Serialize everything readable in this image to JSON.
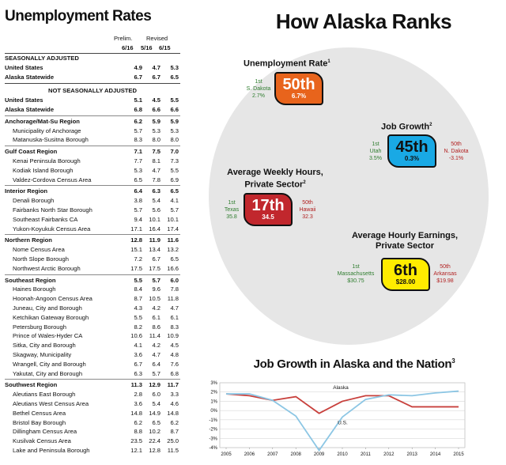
{
  "unemployment_table": {
    "title": "Unemployment Rates",
    "col_group_prelim": "Prelim.",
    "col_group_revised": "Revised",
    "columns": [
      "6/16",
      "5/16",
      "6/15"
    ],
    "rows": [
      {
        "label": "SEASONALLY ADJUSTED",
        "values": [
          "",
          "",
          ""
        ],
        "style": "section"
      },
      {
        "label": "United States",
        "values": [
          "4.9",
          "4.7",
          "5.3"
        ],
        "style": "bold"
      },
      {
        "label": "Alaska Statewide",
        "values": [
          "6.7",
          "6.7",
          "6.5"
        ],
        "style": "bold"
      },
      {
        "label": "NOT SEASONALLY ADJUSTED",
        "values": [
          "",
          "",
          ""
        ],
        "style": "section-center"
      },
      {
        "label": "United States",
        "values": [
          "5.1",
          "4.5",
          "5.5"
        ],
        "style": "bold"
      },
      {
        "label": "Alaska Statewide",
        "values": [
          "6.8",
          "6.6",
          "6.6"
        ],
        "style": "bold"
      },
      {
        "label": "Anchorage/Mat-Su Region",
        "values": [
          "6.2",
          "5.9",
          "5.9"
        ],
        "style": "region"
      },
      {
        "label": "Municipality of Anchorage",
        "values": [
          "5.7",
          "5.3",
          "5.3"
        ],
        "style": "indent"
      },
      {
        "label": "Matanuska-Susitna Borough",
        "values": [
          "8.3",
          "8.0",
          "8.0"
        ],
        "style": "indent"
      },
      {
        "label": "Gulf Coast Region",
        "values": [
          "7.1",
          "7.5",
          "7.0"
        ],
        "style": "region"
      },
      {
        "label": "Kenai Peninsula Borough",
        "values": [
          "7.7",
          "8.1",
          "7.3"
        ],
        "style": "indent"
      },
      {
        "label": "Kodiak Island Borough",
        "values": [
          "5.3",
          "4.7",
          "5.5"
        ],
        "style": "indent"
      },
      {
        "label": "Valdez-Cordova Census Area",
        "values": [
          "6.5",
          "7.8",
          "6.9"
        ],
        "style": "indent"
      },
      {
        "label": "Interior Region",
        "values": [
          "6.4",
          "6.3",
          "6.5"
        ],
        "style": "region"
      },
      {
        "label": "Denali Borough",
        "values": [
          "3.8",
          "5.4",
          "4.1"
        ],
        "style": "indent"
      },
      {
        "label": "Fairbanks North Star Borough",
        "values": [
          "5.7",
          "5.6",
          "5.7"
        ],
        "style": "indent"
      },
      {
        "label": "Southeast Fairbanks CA",
        "values": [
          "9.4",
          "10.1",
          "10.1"
        ],
        "style": "indent"
      },
      {
        "label": "Yukon-Koyukuk Census Area",
        "values": [
          "17.1",
          "16.4",
          "17.4"
        ],
        "style": "indent"
      },
      {
        "label": "Northern Region",
        "values": [
          "12.8",
          "11.9",
          "11.6"
        ],
        "style": "region"
      },
      {
        "label": "Nome Census Area",
        "values": [
          "15.1",
          "13.4",
          "13.2"
        ],
        "style": "indent"
      },
      {
        "label": "North Slope Borough",
        "values": [
          "7.2",
          "6.7",
          "6.5"
        ],
        "style": "indent"
      },
      {
        "label": "Northwest Arctic Borough",
        "values": [
          "17.5",
          "17.5",
          "16.6"
        ],
        "style": "indent"
      },
      {
        "label": "Southeast Region",
        "values": [
          "5.5",
          "5.7",
          "6.0"
        ],
        "style": "region"
      },
      {
        "label": "Haines Borough",
        "values": [
          "8.4",
          "9.6",
          "7.8"
        ],
        "style": "indent"
      },
      {
        "label": "Hoonah-Angoon Census Area",
        "values": [
          "8.7",
          "10.5",
          "11.8"
        ],
        "style": "indent"
      },
      {
        "label": "Juneau, City and Borough",
        "values": [
          "4.3",
          "4.2",
          "4.7"
        ],
        "style": "indent"
      },
      {
        "label": "Ketchikan Gateway Borough",
        "values": [
          "5.5",
          "6.1",
          "6.1"
        ],
        "style": "indent"
      },
      {
        "label": "Petersburg Borough",
        "values": [
          "8.2",
          "8.6",
          "8.3"
        ],
        "style": "indent"
      },
      {
        "label": "Prince of Wales-Hyder CA",
        "values": [
          "10.6",
          "11.4",
          "10.9"
        ],
        "style": "indent"
      },
      {
        "label": "Sitka, City and Borough",
        "values": [
          "4.1",
          "4.2",
          "4.5"
        ],
        "style": "indent"
      },
      {
        "label": "Skagway, Municipality",
        "values": [
          "3.6",
          "4.7",
          "4.8"
        ],
        "style": "indent"
      },
      {
        "label": "Wrangell, City and Borough",
        "values": [
          "6.7",
          "6.4",
          "7.6"
        ],
        "style": "indent"
      },
      {
        "label": "Yakutat, City and Borough",
        "values": [
          "6.3",
          "5.7",
          "6.8"
        ],
        "style": "indent"
      },
      {
        "label": "Southwest Region",
        "values": [
          "11.3",
          "12.9",
          "11.7"
        ],
        "style": "region"
      },
      {
        "label": "Aleutians East Borough",
        "values": [
          "2.8",
          "6.0",
          "3.3"
        ],
        "style": "indent"
      },
      {
        "label": "Aleutians West Census Area",
        "values": [
          "3.6",
          "5.4",
          "4.6"
        ],
        "style": "indent"
      },
      {
        "label": "Bethel Census Area",
        "values": [
          "14.8",
          "14.9",
          "14.8"
        ],
        "style": "indent"
      },
      {
        "label": "Bristol Bay Borough",
        "values": [
          "6.2",
          "6.5",
          "6.2"
        ],
        "style": "indent"
      },
      {
        "label": "Dillingham Census Area",
        "values": [
          "8.8",
          "10.2",
          "8.7"
        ],
        "style": "indent"
      },
      {
        "label": "Kusilvak Census Area",
        "values": [
          "23.5",
          "22.4",
          "25.0"
        ],
        "style": "indent"
      },
      {
        "label": "Lake and Peninsula Borough",
        "values": [
          "12.1",
          "12.8",
          "11.5"
        ],
        "style": "indent"
      }
    ]
  },
  "ranks": {
    "title": "How Alaska Ranks",
    "categories": [
      {
        "title": "Unemployment Rate",
        "footnote": "1",
        "rank": "50th",
        "value": "6.7%",
        "color": "#e8641c",
        "best_label": "1st",
        "best_name": "S. Dakota",
        "best_value": "2.7%",
        "worst_label": "",
        "worst_name": "",
        "worst_value": ""
      },
      {
        "title": "Job Growth",
        "footnote": "2",
        "rank": "45th",
        "value": "0.3%",
        "color": "#19a9e5",
        "best_label": "1st",
        "best_name": "Utah",
        "best_value": "3.5%",
        "worst_label": "50th",
        "worst_name": "N. Dakota",
        "worst_value": "-3.1%"
      },
      {
        "title_line1": "Average Weekly Hours,",
        "title_line2": "Private Sector",
        "footnote": "2",
        "rank": "17th",
        "value": "34.5",
        "color": "#c1272d",
        "best_label": "1st",
        "best_name": "Texas",
        "best_value": "35.8",
        "worst_label": "50th",
        "worst_name": "Hawaii",
        "worst_value": "32.3"
      },
      {
        "title_line1": "Average Hourly Earnings,",
        "title_line2": "Private Sector",
        "footnote": "",
        "rank": "6th",
        "value": "$28.00",
        "color": "#ffec00",
        "best_label": "1st",
        "best_name": "Massachusetts",
        "best_value": "$30.75",
        "worst_label": "50th",
        "worst_name": "Arkansas",
        "worst_value": "$19.98"
      }
    ]
  },
  "chart_data": {
    "type": "line",
    "title": "Job Growth in Alaska and the Nation",
    "title_footnote": "3",
    "x": [
      2005,
      2006,
      2007,
      2008,
      2009,
      2010,
      2011,
      2012,
      2013,
      2014,
      2015
    ],
    "yticks": [
      "3%",
      "2%",
      "1%",
      "0%",
      "-1%",
      "-2%",
      "-3%",
      "-4%"
    ],
    "ylim": [
      -4,
      3
    ],
    "grid": true,
    "series": [
      {
        "name": "Alaska",
        "color": "#c8403c",
        "values": [
          1.8,
          1.6,
          1.1,
          1.5,
          -0.3,
          1.0,
          1.6,
          1.6,
          0.4,
          0.4,
          0.4
        ]
      },
      {
        "name": "U.S.",
        "color": "#8cc6e4",
        "values": [
          1.8,
          1.8,
          1.1,
          -0.6,
          -4.3,
          -0.7,
          1.2,
          1.7,
          1.6,
          1.9,
          2.1
        ]
      }
    ]
  }
}
